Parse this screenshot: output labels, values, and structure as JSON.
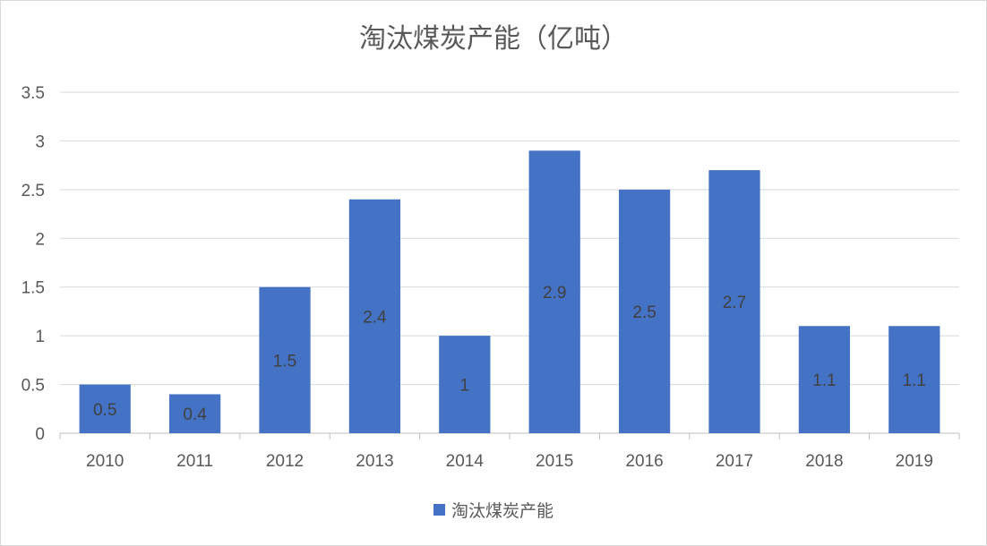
{
  "chart_data": {
    "type": "bar",
    "title": "淘汰煤炭产能（亿吨）",
    "categories": [
      "2010",
      "2011",
      "2012",
      "2013",
      "2014",
      "2015",
      "2016",
      "2017",
      "2018",
      "2019"
    ],
    "series": [
      {
        "name": "淘汰煤炭产能",
        "values": [
          0.5,
          0.4,
          1.5,
          2.4,
          1,
          2.9,
          2.5,
          2.7,
          1.1,
          1.1
        ]
      }
    ],
    "data_labels": [
      "0.5",
      "0.4",
      "1.5",
      "2.4",
      "1",
      "2.9",
      "2.5",
      "2.7",
      "1.1",
      "1.1"
    ],
    "ylim": [
      0,
      3.5
    ],
    "yticks": [
      "0",
      "0.5",
      "1",
      "1.5",
      "2",
      "2.5",
      "3",
      "3.5"
    ],
    "grid": true,
    "legend_position": "bottom",
    "bar_color": "#4472c4",
    "xlabel": "",
    "ylabel": ""
  }
}
